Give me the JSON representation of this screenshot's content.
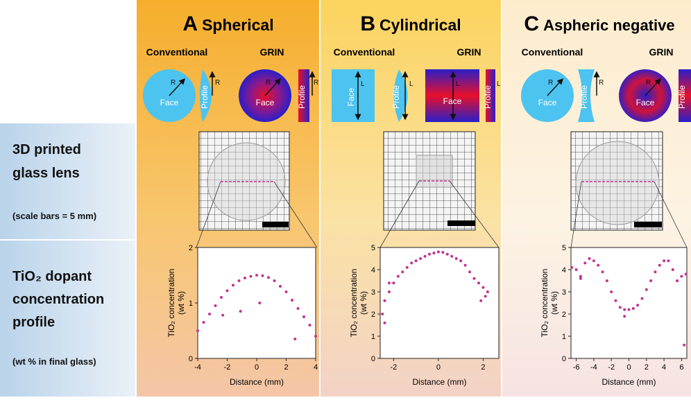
{
  "row_labels": [
    {
      "lines": [
        "3D printed",
        "glass lens"
      ],
      "note": "(scale bars = 5 mm)"
    },
    {
      "lines": [
        "TiO₂ dopant",
        "concentration",
        "profile"
      ],
      "note": "(wt % in final glass)"
    }
  ],
  "panels": [
    {
      "letter": "A",
      "title": "Spherical",
      "conventional": "Conventional",
      "grin": "GRIN",
      "face_label": "Face",
      "profile_label": "Profile",
      "dim_label": "R"
    },
    {
      "letter": "B",
      "title": "Cylindrical",
      "conventional": "Conventional",
      "grin": "GRIN",
      "face_label": "Face",
      "profile_label": "Profile",
      "dim_label": "L"
    },
    {
      "letter": "C",
      "title": "Aspheric negative",
      "conventional": "Conventional",
      "grin": "GRIN",
      "face_label": "Face",
      "profile_label": "Profile",
      "dim_label": "R"
    }
  ],
  "chart_data": [
    {
      "type": "scatter",
      "xlabel": "Distance (mm)",
      "ylabel": [
        "TiO₂ concentration",
        "(wt %)"
      ],
      "color": "#c2338e",
      "xlim": [
        -4,
        4
      ],
      "xticks": [
        -4,
        -2,
        0,
        2,
        4
      ],
      "ylim": [
        0,
        2
      ],
      "yticks": [
        0,
        1,
        2
      ],
      "x": [
        -4,
        -3.6,
        -3.2,
        -2.8,
        -2.4,
        -2,
        -1.6,
        -1.2,
        -0.8,
        -0.4,
        0,
        0.4,
        0.8,
        1.2,
        1.6,
        2,
        2.4,
        2.8,
        3.2,
        3.6,
        4,
        -2.3,
        -1.1,
        0.2,
        2.6
      ],
      "values": [
        0.5,
        0.65,
        0.8,
        0.95,
        1.1,
        1.22,
        1.32,
        1.4,
        1.45,
        1.48,
        1.5,
        1.49,
        1.46,
        1.4,
        1.3,
        1.2,
        1.05,
        0.9,
        0.75,
        0.6,
        0.4,
        0.78,
        0.85,
        1.0,
        0.35
      ]
    },
    {
      "type": "scatter",
      "xlabel": "Distance (mm)",
      "ylabel": [
        "TiO₂ concentration",
        "(wt %)"
      ],
      "color": "#c2338e",
      "xlim": [
        -2.6,
        2.7
      ],
      "xticks": [
        -2,
        0,
        2
      ],
      "ylim": [
        0,
        5
      ],
      "yticks": [
        0,
        1,
        2,
        3,
        4,
        5
      ],
      "x": [
        -2.5,
        -2.4,
        -2.2,
        -2,
        -1.8,
        -1.6,
        -1.4,
        -1.2,
        -1,
        -0.8,
        -0.6,
        -0.4,
        -0.2,
        0,
        0.2,
        0.4,
        0.6,
        0.8,
        1,
        1.2,
        1.4,
        1.6,
        1.8,
        2,
        2.2,
        -2.4,
        -2.2,
        1.9,
        2.1
      ],
      "values": [
        2.0,
        2.6,
        3.0,
        3.4,
        3.7,
        3.9,
        4.1,
        4.3,
        4.4,
        4.5,
        4.6,
        4.7,
        4.75,
        4.8,
        4.78,
        4.7,
        4.6,
        4.5,
        4.4,
        4.2,
        3.9,
        3.6,
        3.4,
        3.2,
        3.0,
        1.6,
        3.4,
        2.6,
        2.8
      ]
    },
    {
      "type": "scatter",
      "xlabel": "Distance (mm)",
      "ylabel": [
        "TiO₂ concentration",
        "(wt %)"
      ],
      "color": "#c2338e",
      "xlim": [
        -6.6,
        6.6
      ],
      "xticks": [
        -6,
        -4,
        -2,
        0,
        2,
        4,
        6
      ],
      "ylim": [
        0,
        5
      ],
      "yticks": [
        0,
        1,
        2,
        3,
        4,
        5
      ],
      "x": [
        -6.5,
        -6,
        -5.5,
        -5,
        -4.5,
        -4,
        -3.5,
        -3,
        -2.5,
        -2,
        -1.5,
        -1,
        -0.5,
        0,
        0.5,
        1,
        1.5,
        2,
        2.5,
        3,
        3.5,
        4,
        4.5,
        5,
        5.5,
        6,
        6.5,
        -5.5,
        -0.5,
        5.5,
        6.3
      ],
      "values": [
        4.1,
        4.0,
        3.7,
        4.3,
        4.5,
        4.4,
        4.2,
        3.9,
        3.5,
        3.0,
        2.6,
        2.3,
        2.2,
        2.2,
        2.25,
        2.4,
        2.7,
        3.1,
        3.5,
        3.9,
        4.2,
        4.4,
        4.4,
        4.0,
        3.5,
        3.7,
        3.8,
        3.6,
        1.9,
        3.5,
        0.6
      ]
    }
  ]
}
